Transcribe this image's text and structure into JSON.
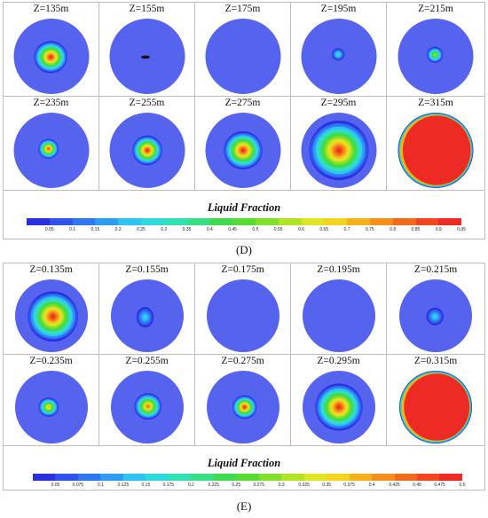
{
  "panel_d": {
    "label": "(D)",
    "colorbar_title": "Liquid Fraction",
    "ticks": [
      "0.05",
      "0.1",
      "0.15",
      "0.2",
      "0.25",
      "0.3",
      "0.35",
      "0.4",
      "0.45",
      "0.5",
      "0.55",
      "0.6",
      "0.65",
      "0.7",
      "0.75",
      "0.8",
      "0.85",
      "0.9",
      "0.95"
    ],
    "cells": [
      {
        "title": "Z=135m",
        "level": 0.95,
        "rx": 0.45,
        "ry": 0.42,
        "dx": -0.02,
        "dy": 0.02,
        "ring": false
      },
      {
        "title": "Z=155m",
        "level": 0.0,
        "rx": 0,
        "ry": 0,
        "dx": 0,
        "dy": 0,
        "ring": false,
        "spot": true
      },
      {
        "title": "Z=175m",
        "level": 0.0,
        "rx": 0,
        "ry": 0,
        "dx": 0,
        "dy": 0,
        "ring": false
      },
      {
        "title": "Z=195m",
        "level": 0.35,
        "rx": 0.17,
        "ry": 0.16,
        "dx": -0.02,
        "dy": -0.05,
        "ring": false
      },
      {
        "title": "Z=215m",
        "level": 0.6,
        "rx": 0.22,
        "ry": 0.21,
        "dx": -0.02,
        "dy": -0.04,
        "ring": false
      },
      {
        "title": "Z=235m",
        "level": 0.9,
        "rx": 0.27,
        "ry": 0.26,
        "dx": -0.08,
        "dy": -0.04,
        "ring": false
      },
      {
        "title": "Z=255m",
        "level": 0.95,
        "rx": 0.4,
        "ry": 0.39,
        "dx": 0.0,
        "dy": 0.0,
        "ring": false
      },
      {
        "title": "Z=275m",
        "level": 0.95,
        "rx": 0.52,
        "ry": 0.5,
        "dx": 0.0,
        "dy": 0.0,
        "ring": false
      },
      {
        "title": "Z=295m",
        "level": 0.95,
        "rx": 0.8,
        "ry": 0.78,
        "dx": 0.0,
        "dy": 0.0,
        "ring": false
      },
      {
        "title": "Z=315m",
        "level": 0.95,
        "rx": 1.0,
        "ry": 1.0,
        "dx": 0,
        "dy": 0,
        "ring": true
      }
    ]
  },
  "panel_e": {
    "label": "(E)",
    "colorbar_title": "Liquid Fraction",
    "ticks": [
      "0.05",
      "0.075",
      "0.1",
      "0.125",
      "0.15",
      "0.175",
      "0.2",
      "0.225",
      "0.25",
      "0.275",
      "0.3",
      "0.325",
      "0.35",
      "0.375",
      "0.4",
      "0.425",
      "0.45",
      "0.475",
      "0.5"
    ],
    "cells": [
      {
        "title": "Z=0.135m",
        "level": 0.95,
        "rx": 0.7,
        "ry": 0.68,
        "dx": 0.04,
        "dy": 0.02,
        "ring": false
      },
      {
        "title": "Z=0.155m",
        "level": 0.3,
        "rx": 0.24,
        "ry": 0.28,
        "dx": -0.06,
        "dy": 0.04,
        "ring": false
      },
      {
        "title": "Z=0.175m",
        "level": 0.0,
        "rx": 0,
        "ry": 0,
        "dx": 0,
        "dy": 0,
        "ring": false
      },
      {
        "title": "Z=0.195m",
        "level": 0.0,
        "rx": 0,
        "ry": 0,
        "dx": 0,
        "dy": 0,
        "ring": false
      },
      {
        "title": "Z=0.215m",
        "level": 0.3,
        "rx": 0.24,
        "ry": 0.24,
        "dx": -0.02,
        "dy": 0.02,
        "ring": false
      },
      {
        "title": "Z=0.235m",
        "level": 0.75,
        "rx": 0.28,
        "ry": 0.26,
        "dx": -0.08,
        "dy": 0.0,
        "ring": false
      },
      {
        "title": "Z=0.255m",
        "level": 0.85,
        "rx": 0.38,
        "ry": 0.36,
        "dx": 0.02,
        "dy": -0.02,
        "ring": false
      },
      {
        "title": "Z=0.275m",
        "level": 0.95,
        "rx": 0.34,
        "ry": 0.32,
        "dx": 0.04,
        "dy": 0.0,
        "ring": false
      },
      {
        "title": "Z=0.295m",
        "level": 0.95,
        "rx": 0.66,
        "ry": 0.64,
        "dx": 0.0,
        "dy": 0.0,
        "ring": false
      },
      {
        "title": "Z=0.315m",
        "level": 0.95,
        "rx": 1.0,
        "ry": 1.0,
        "dx": 0,
        "dy": 0,
        "ring": true
      }
    ]
  },
  "colors": {
    "background_disc": "#5563ee",
    "colormap": [
      "#2a2fe0",
      "#2f52f0",
      "#3076f3",
      "#2f9cf4",
      "#2ec4f2",
      "#2ed9dc",
      "#31e0b4",
      "#36df85",
      "#3ed94f",
      "#58dc33",
      "#83e02a",
      "#b2e423",
      "#dfe520",
      "#f3d41d",
      "#f5b21b",
      "#f58e1a",
      "#f46a1c",
      "#f2461f",
      "#ee2a24"
    ]
  }
}
